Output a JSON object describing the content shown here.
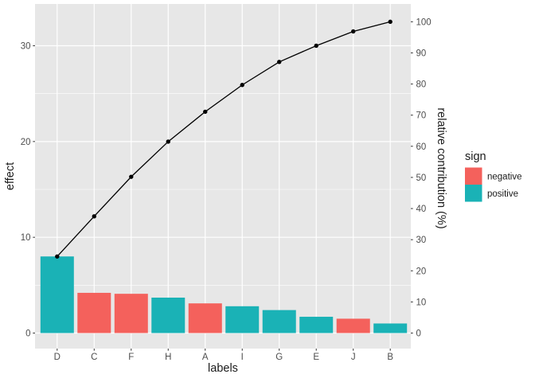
{
  "chart_data": {
    "type": "bar",
    "subtype": "pareto-chart-with-cumulative-line",
    "style": "ggplot2 theme_gray",
    "categories": [
      "D",
      "C",
      "F",
      "H",
      "A",
      "I",
      "G",
      "E",
      "J",
      "B"
    ],
    "series": [
      {
        "name": "effect",
        "type": "bar",
        "axis": "left",
        "values": [
          8,
          4.2,
          4.1,
          3.7,
          3.1,
          2.8,
          2.4,
          1.7,
          1.5,
          1.0
        ],
        "signs": [
          "positive",
          "negative",
          "negative",
          "positive",
          "negative",
          "positive",
          "positive",
          "positive",
          "negative",
          "positive"
        ]
      },
      {
        "name": "cumulative relative contribution",
        "type": "line",
        "axis": "right",
        "unit": "%",
        "values": [
          24.6,
          37.5,
          50.2,
          61.5,
          71.1,
          79.7,
          87.1,
          92.3,
          96.9,
          100
        ]
      }
    ],
    "xlabel": "labels",
    "ylabel_left": "effect",
    "ylabel_right": "relative contribution (%)",
    "axes": {
      "left": {
        "ticks": [
          0,
          10,
          20,
          30
        ],
        "minor_gridlines": [
          5,
          15,
          25
        ],
        "range": [
          -1.6,
          34.4
        ]
      },
      "right": {
        "ticks": [
          0,
          10,
          20,
          30,
          40,
          50,
          60,
          70,
          80,
          90,
          100
        ],
        "range": [
          0,
          100
        ]
      },
      "x": {
        "type": "categorical"
      }
    },
    "legend": {
      "title": "sign",
      "position": "right",
      "items": [
        {
          "label": "negative",
          "color": "#F4615C"
        },
        {
          "label": "positive",
          "color": "#1AB2B6"
        }
      ]
    },
    "colors": {
      "negative": "#F4615C",
      "positive": "#1AB2B6",
      "line": "#000000",
      "point": "#000000",
      "panel_background": "#E7E7E7",
      "gridline_major": "#FFFFFF",
      "gridline_minor": "#FFFFFF",
      "tick_mark": "#333333",
      "tick_label": "#4D4D4D",
      "axis_title": "#1A1A1A",
      "page_background": "#FFFFFF"
    },
    "grid": "white major gridlines at axis breaks and category centers, thinner minor gridlines between left-axis breaks, on gray panel"
  }
}
